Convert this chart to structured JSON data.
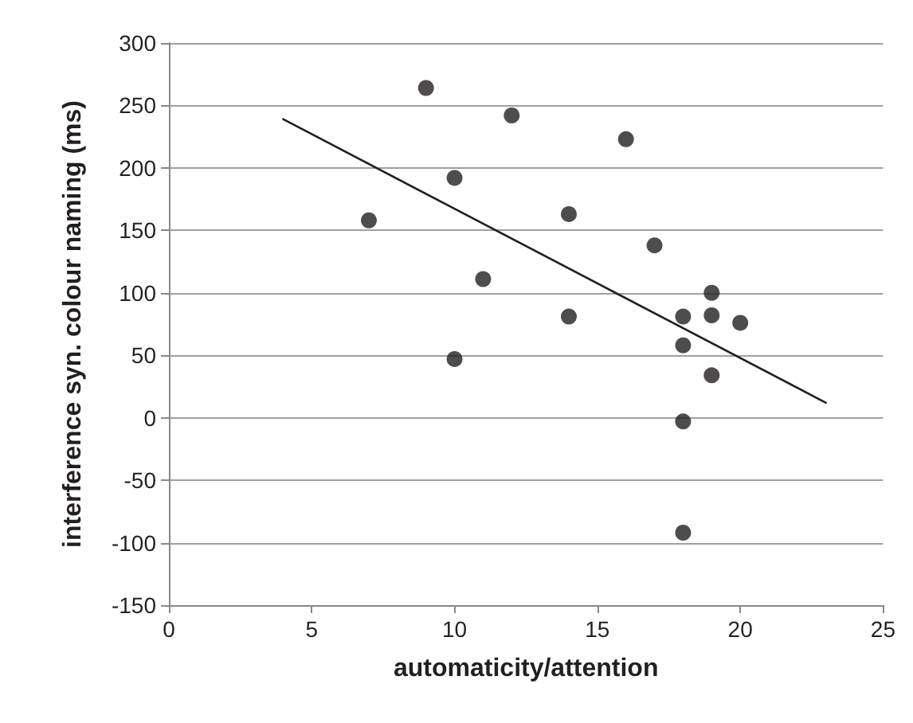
{
  "chart_data": {
    "type": "scatter",
    "xlabel": "automaticity/attention",
    "ylabel": "interference syn. colour naming (ms)",
    "xlim": [
      0,
      25
    ],
    "xticks": [
      0,
      5,
      10,
      15,
      20,
      25
    ],
    "ylim": [
      -150,
      300
    ],
    "yticks": [
      -150,
      -100,
      -50,
      0,
      50,
      100,
      150,
      200,
      250,
      300
    ],
    "grid": "y",
    "marker": "circle",
    "series": [
      {
        "color": "#231f20",
        "x": [
          7,
          9,
          10,
          10,
          11,
          12,
          14,
          14,
          16,
          17,
          18,
          18,
          18,
          18,
          19,
          19,
          19,
          20
        ],
        "values": [
          158,
          264,
          192,
          47,
          111,
          242,
          163,
          81,
          223,
          138,
          81,
          58,
          -3,
          -92,
          100,
          82,
          34,
          76
        ]
      },
      {
        "type": "line",
        "color": "#231f20",
        "marker": "none",
        "line_style": "solid",
        "x": [
          4,
          23
        ],
        "values": [
          239,
          12
        ]
      }
    ]
  }
}
